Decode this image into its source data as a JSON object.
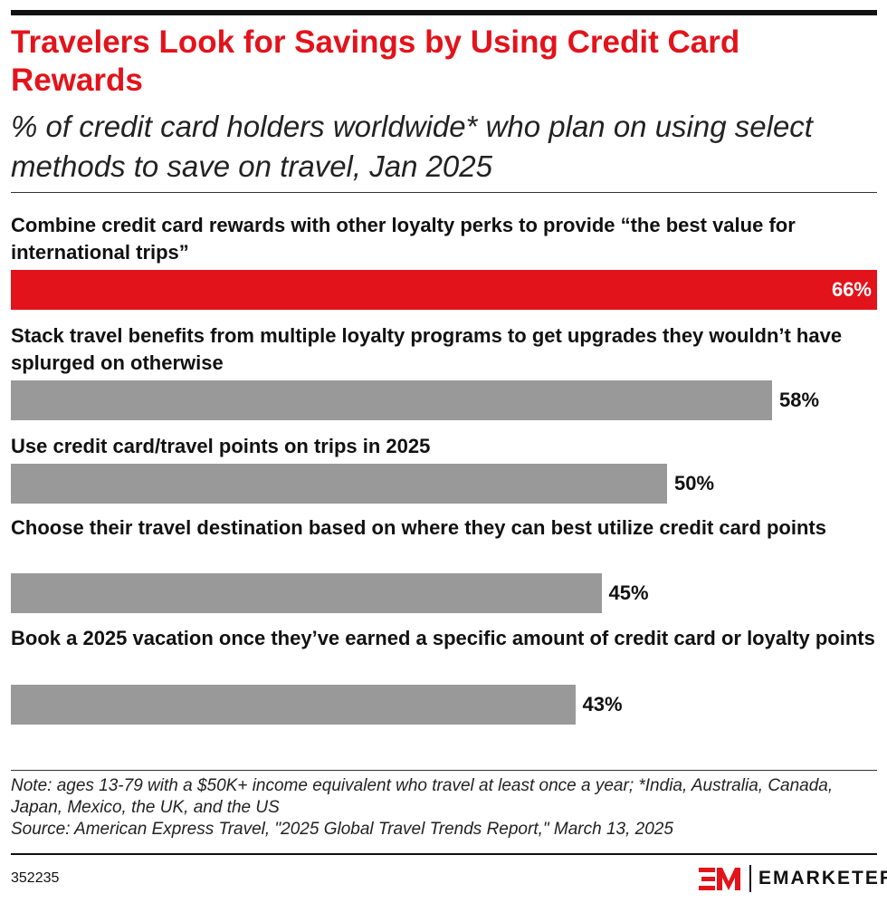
{
  "title": "Travelers Look for Savings by Using Credit Card Rewards",
  "subtitle": "% of credit card holders worldwide* who plan on using select methods to save on travel, Jan 2025",
  "chart_data": {
    "type": "bar",
    "orientation": "horizontal",
    "categories": [
      "Combine credit card rewards with other loyalty perks to provide “the best value for international trips”",
      "Stack travel benefits from multiple loyalty programs to get upgrades they wouldn’t have splurged on otherwise",
      "Use credit card/travel points on trips in 2025",
      "Choose their travel destination based on where they can best utilize credit card points",
      "Book a 2025 vacation once they’ve earned a specific amount of credit card or loyalty points"
    ],
    "values": [
      66,
      58,
      50,
      45,
      43
    ],
    "value_labels": [
      "66%",
      "58%",
      "50%",
      "45%",
      "43%"
    ],
    "colors": [
      "#e3131b",
      "#999999",
      "#999999",
      "#999999",
      "#999999"
    ],
    "xlim": [
      0,
      66
    ],
    "grid": false
  },
  "note": "Note: ages 13-79 with a $50K+ income equivalent who travel at least once a year; *India, Australia, Canada, Japan, Mexico, the UK, and the US",
  "source": "Source: American Express Travel, \"2025 Global Travel Trends Report,\" March 13, 2025",
  "chart_id": "352235",
  "logo": "EMARKETER"
}
